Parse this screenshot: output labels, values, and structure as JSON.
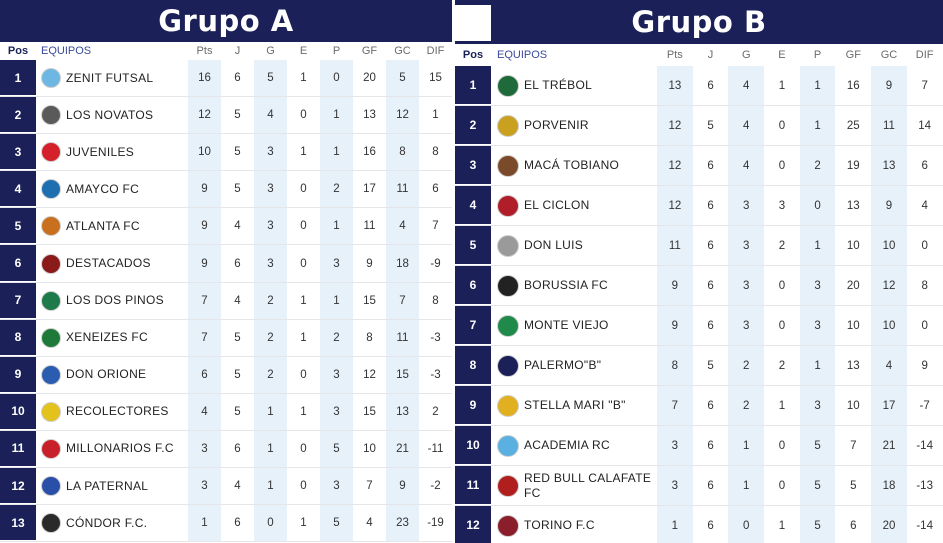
{
  "columns": {
    "pos": "Pos",
    "team": "EQUIPOS",
    "stats": [
      "Pts",
      "J",
      "G",
      "E",
      "P",
      "GF",
      "GC",
      "DIF"
    ]
  },
  "groups": [
    {
      "title": "Grupo A",
      "rows": [
        {
          "pos": "1",
          "team": "ZENIT FUTSAL",
          "crest_color": "#6fb7e3",
          "stats": [
            "16",
            "6",
            "5",
            "1",
            "0",
            "20",
            "5",
            "15"
          ]
        },
        {
          "pos": "2",
          "team": "LOS NOVATOS",
          "crest_color": "#5a5a5a",
          "stats": [
            "12",
            "5",
            "4",
            "0",
            "1",
            "13",
            "12",
            "1"
          ]
        },
        {
          "pos": "3",
          "team": "JUVENILES",
          "crest_color": "#d4202a",
          "stats": [
            "10",
            "5",
            "3",
            "1",
            "1",
            "16",
            "8",
            "8"
          ]
        },
        {
          "pos": "4",
          "team": "AMAYCO FC",
          "crest_color": "#1e6fb0",
          "stats": [
            "9",
            "5",
            "3",
            "0",
            "2",
            "17",
            "11",
            "6"
          ]
        },
        {
          "pos": "5",
          "team": "ATLANTA FC",
          "crest_color": "#c9701e",
          "stats": [
            "9",
            "4",
            "3",
            "0",
            "1",
            "11",
            "4",
            "7"
          ]
        },
        {
          "pos": "6",
          "team": "DESTACADOS",
          "crest_color": "#8b1a1a",
          "stats": [
            "9",
            "6",
            "3",
            "0",
            "3",
            "9",
            "18",
            "-9"
          ]
        },
        {
          "pos": "7",
          "team": "LOS DOS PINOS",
          "crest_color": "#1e7a4a",
          "stats": [
            "7",
            "4",
            "2",
            "1",
            "1",
            "15",
            "7",
            "8"
          ]
        },
        {
          "pos": "8",
          "team": "XENEIZES FC",
          "crest_color": "#1f7a3a",
          "stats": [
            "7",
            "5",
            "2",
            "1",
            "2",
            "8",
            "11",
            "-3"
          ]
        },
        {
          "pos": "9",
          "team": "DON ORIONE",
          "crest_color": "#2a5db0",
          "stats": [
            "6",
            "5",
            "2",
            "0",
            "3",
            "12",
            "15",
            "-3"
          ]
        },
        {
          "pos": "10",
          "team": "RECOLECTORES",
          "crest_color": "#e2c21b",
          "stats": [
            "4",
            "5",
            "1",
            "1",
            "3",
            "15",
            "13",
            "2"
          ]
        },
        {
          "pos": "11",
          "team": "MILLONARIOS F.C",
          "crest_color": "#c8202a",
          "stats": [
            "3",
            "6",
            "1",
            "0",
            "5",
            "10",
            "21",
            "-11"
          ]
        },
        {
          "pos": "12",
          "team": "LA PATERNAL",
          "crest_color": "#2a4fa8",
          "stats": [
            "3",
            "4",
            "1",
            "0",
            "3",
            "7",
            "9",
            "-2"
          ]
        },
        {
          "pos": "13",
          "team": "CÓNDOR F.C.",
          "crest_color": "#2a2a2a",
          "stats": [
            "1",
            "6",
            "0",
            "1",
            "5",
            "4",
            "23",
            "-19"
          ]
        }
      ]
    },
    {
      "title": "Grupo B",
      "rows": [
        {
          "pos": "1",
          "team": "EL TRÉBOL",
          "crest_color": "#1f6a3a",
          "stats": [
            "13",
            "6",
            "4",
            "1",
            "1",
            "16",
            "9",
            "7"
          ]
        },
        {
          "pos": "2",
          "team": "PORVENIR",
          "crest_color": "#c9a020",
          "stats": [
            "12",
            "5",
            "4",
            "0",
            "1",
            "25",
            "11",
            "14"
          ]
        },
        {
          "pos": "3",
          "team": "MACÁ TOBIANO",
          "crest_color": "#7a4a2a",
          "stats": [
            "12",
            "6",
            "4",
            "0",
            "2",
            "19",
            "13",
            "6"
          ]
        },
        {
          "pos": "4",
          "team": "EL CICLON",
          "crest_color": "#b01e2a",
          "stats": [
            "12",
            "6",
            "3",
            "3",
            "0",
            "13",
            "9",
            "4"
          ]
        },
        {
          "pos": "5",
          "team": "DON LUIS",
          "crest_color": "#9a9a9a",
          "stats": [
            "11",
            "6",
            "3",
            "2",
            "1",
            "10",
            "10",
            "0"
          ]
        },
        {
          "pos": "6",
          "team": "BORUSSIA FC",
          "crest_color": "#222222",
          "stats": [
            "9",
            "6",
            "3",
            "0",
            "3",
            "20",
            "12",
            "8"
          ]
        },
        {
          "pos": "7",
          "team": "MONTE VIEJO",
          "crest_color": "#1f8a4a",
          "stats": [
            "9",
            "6",
            "3",
            "0",
            "3",
            "10",
            "10",
            "0"
          ]
        },
        {
          "pos": "8",
          "team": "PALERMO\"B\"",
          "crest_color": "#1b2158",
          "stats": [
            "8",
            "5",
            "2",
            "2",
            "1",
            "13",
            "4",
            "9"
          ]
        },
        {
          "pos": "9",
          "team": "STELLA MARI \"B\"",
          "crest_color": "#e0b020",
          "stats": [
            "7",
            "6",
            "2",
            "1",
            "3",
            "10",
            "17",
            "-7"
          ]
        },
        {
          "pos": "10",
          "team": "ACADEMIA RC",
          "crest_color": "#5ab0e0",
          "stats": [
            "3",
            "6",
            "1",
            "0",
            "5",
            "7",
            "21",
            "-14"
          ]
        },
        {
          "pos": "11",
          "team": "RED BULL CALAFATE FC",
          "crest_color": "#b01e1e",
          "stats": [
            "3",
            "6",
            "1",
            "0",
            "5",
            "5",
            "18",
            "-13"
          ]
        },
        {
          "pos": "12",
          "team": "TORINO F.C",
          "crest_color": "#8a1e2a",
          "stats": [
            "1",
            "6",
            "0",
            "1",
            "5",
            "6",
            "20",
            "-14"
          ]
        }
      ]
    }
  ]
}
